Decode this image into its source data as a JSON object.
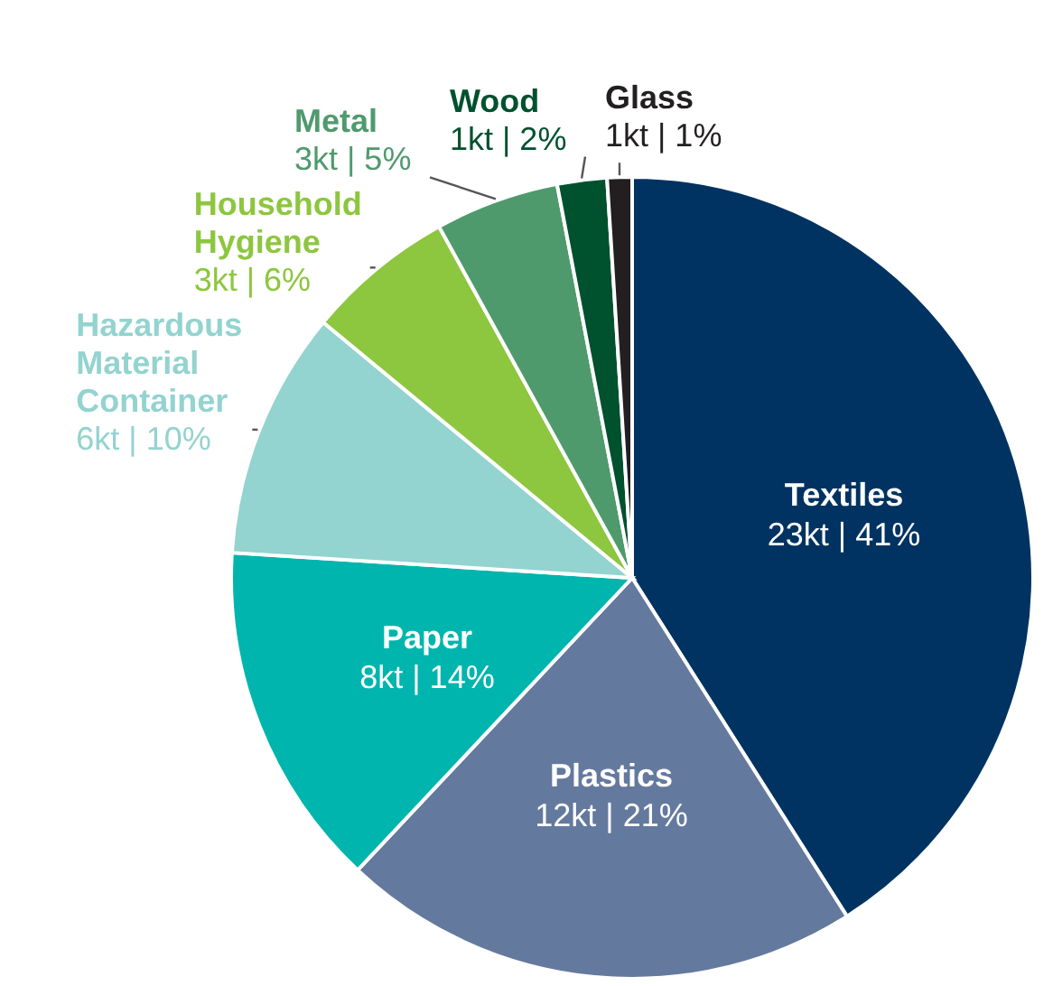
{
  "chart_data": {
    "type": "pie",
    "categories": [
      "Textiles",
      "Plastics",
      "Paper",
      "Hazardous Material Container",
      "Household Hygiene",
      "Metal",
      "Wood",
      "Glass"
    ],
    "values": [
      41,
      21,
      14,
      10,
      6,
      5,
      2,
      1
    ],
    "colors": [
      "#003361",
      "#64799e",
      "#00b5ad",
      "#93d3d0",
      "#8dc63f",
      "#4f9a6d",
      "#00512e",
      "#231f20"
    ],
    "value_labels": [
      "23kt | 41%",
      "12kt | 21%",
      "8kt | 14%",
      "6kt | 10%",
      "3kt | 6%",
      "3kt | 5%",
      "1kt | 2%",
      "1kt | 1%"
    ]
  }
}
